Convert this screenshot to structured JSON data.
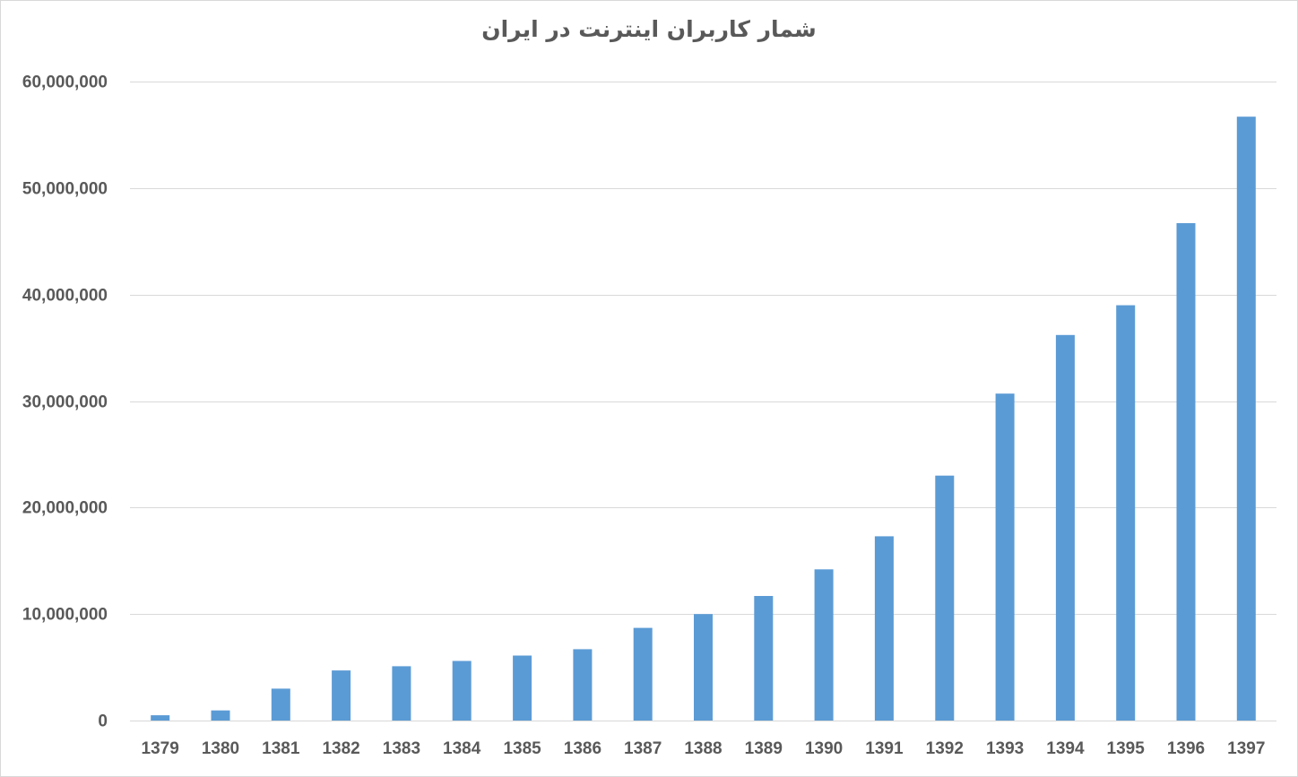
{
  "chart_data": {
    "type": "bar",
    "title": "شمار کاربران اینترنت در ایران",
    "xlabel": "",
    "ylabel": "",
    "categories": [
      "1379",
      "1380",
      "1381",
      "1382",
      "1383",
      "1384",
      "1385",
      "1386",
      "1387",
      "1388",
      "1389",
      "1390",
      "1391",
      "1392",
      "1393",
      "1394",
      "1395",
      "1396",
      "1397"
    ],
    "values": [
      500000,
      950000,
      3000000,
      4700000,
      5100000,
      5600000,
      6100000,
      6700000,
      8700000,
      10000000,
      11700000,
      14200000,
      17300000,
      23000000,
      30700000,
      36200000,
      39000000,
      46700000,
      56700000
    ],
    "ylim": [
      0,
      60000000
    ],
    "yticks": [
      0,
      10000000,
      20000000,
      30000000,
      40000000,
      50000000,
      60000000
    ],
    "ytick_labels": [
      "0",
      "10,000,000",
      "20,000,000",
      "30,000,000",
      "40,000,000",
      "50,000,000",
      "60,000,000"
    ],
    "grid": true,
    "legend": "none",
    "colors": {
      "bar": "#5b9bd5",
      "grid": "#d9d9d9",
      "axis": "#d9d9d9",
      "text": "#595959"
    }
  }
}
